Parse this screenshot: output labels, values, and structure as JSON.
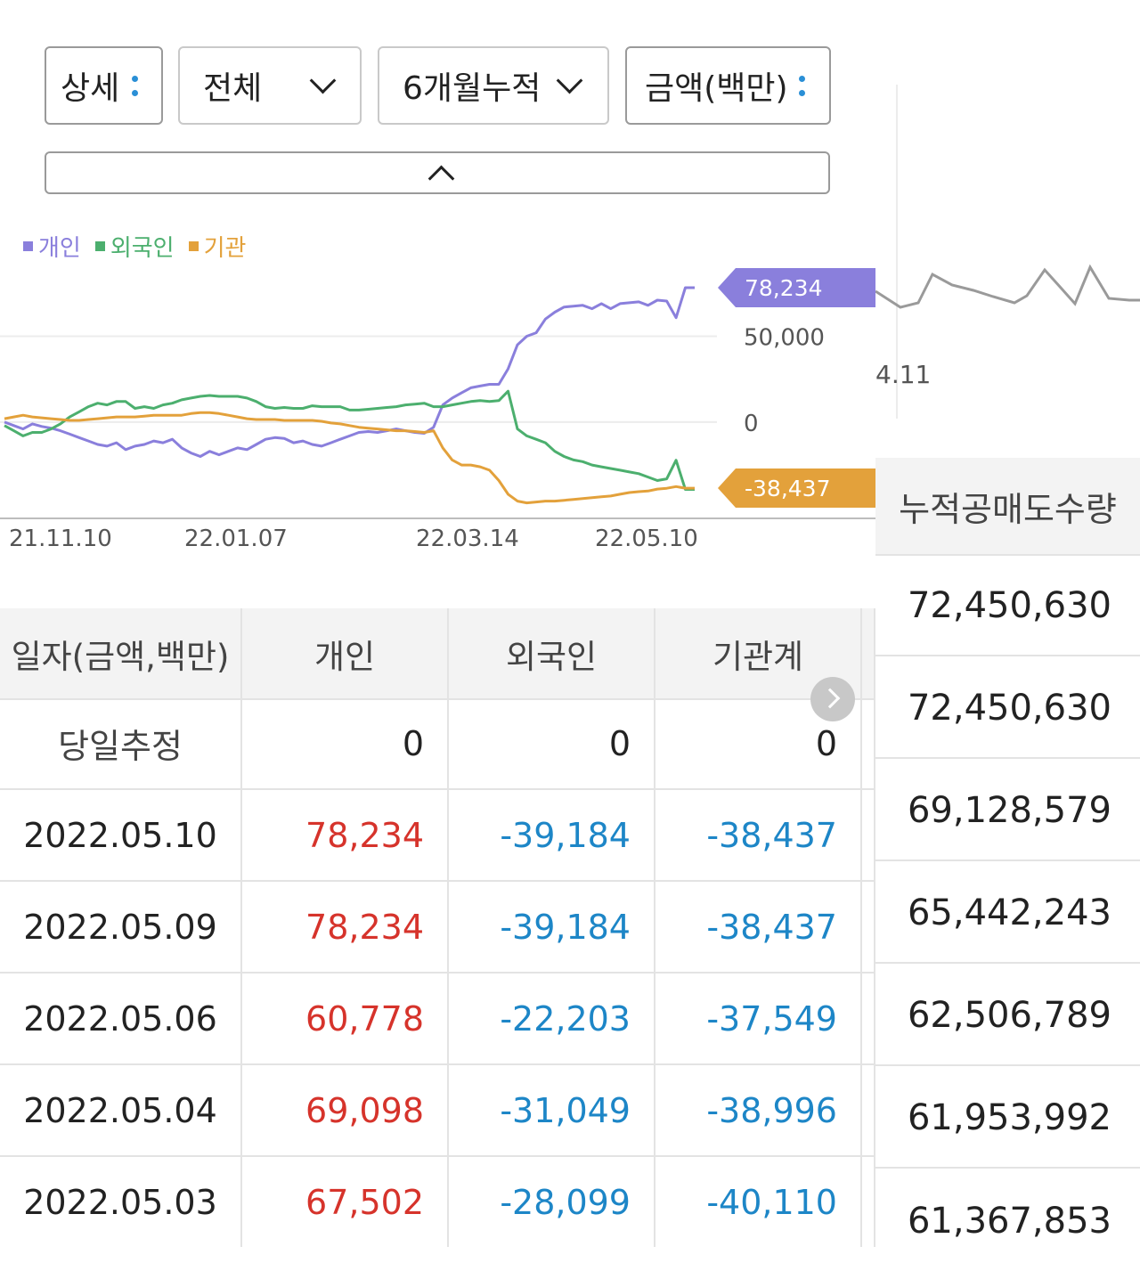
{
  "filters": {
    "detail": "상세",
    "scope": "전체",
    "period": "6개월누적",
    "unit": "금액(백만)"
  },
  "chart_legend": [
    "개인",
    "외국인",
    "기관"
  ],
  "chart_data": {
    "type": "line",
    "x_ticks": [
      "21.11.10",
      "22.01.07",
      "22.03.14",
      "22.05.10"
    ],
    "y_ticks": [
      "50,000",
      "0"
    ],
    "ylim": [
      -55000,
      85000
    ],
    "colors": {
      "개인": "#8a7fdc",
      "외국인": "#4caf6e",
      "기관": "#e3a13b"
    },
    "series": [
      {
        "name": "개인",
        "values": [
          0,
          -2000,
          -4000,
          -1000,
          -2500,
          -3500,
          -5000,
          -7000,
          -9000,
          -11000,
          -13000,
          -14000,
          -12000,
          -16000,
          -14000,
          -13000,
          -11000,
          -12000,
          -10000,
          -15000,
          -18000,
          -20000,
          -17000,
          -19000,
          -17000,
          -15000,
          -16000,
          -13000,
          -10000,
          -9000,
          -9500,
          -12000,
          -11000,
          -13000,
          -14000,
          -12000,
          -10000,
          -8000,
          -6000,
          -5500,
          -6000,
          -5000,
          -4000,
          -5000,
          -6000,
          -6500,
          -3000,
          10000,
          14000,
          17000,
          20000,
          21000,
          22000,
          22000,
          31000,
          45000,
          50000,
          52000,
          60000,
          64000,
          67000,
          67500,
          68000,
          66000,
          69000,
          66000,
          69000,
          69500,
          70000,
          68000,
          71000,
          70500,
          60778,
          78234,
          78234
        ],
        "label": "78,234"
      },
      {
        "name": "외국인",
        "values": [
          -2000,
          -5000,
          -8000,
          -6000,
          -6000,
          -4000,
          -1000,
          3000,
          6000,
          9000,
          11000,
          10000,
          12000,
          12000,
          8000,
          9000,
          8000,
          10000,
          11000,
          13000,
          14000,
          15000,
          15500,
          15000,
          15000,
          15000,
          14000,
          12000,
          9000,
          8000,
          8500,
          8000,
          8000,
          9500,
          9000,
          9000,
          9000,
          7000,
          7000,
          7500,
          8000,
          8500,
          9000,
          10000,
          10500,
          11000,
          9000,
          9000,
          10000,
          11000,
          12000,
          12500,
          12000,
          12500,
          18000,
          -4000,
          -8000,
          -10000,
          -12000,
          -17000,
          -20000,
          -22000,
          -23000,
          -25000,
          -26000,
          -27000,
          -28000,
          -29000,
          -30000,
          -32000,
          -34000,
          -33000,
          -22203,
          -39184,
          -39184
        ],
        "label": "-39,184"
      },
      {
        "name": "기관",
        "values": [
          2000,
          3000,
          4000,
          3000,
          2500,
          2000,
          1500,
          1000,
          1000,
          1500,
          2000,
          2500,
          3000,
          3000,
          3000,
          3500,
          4000,
          4000,
          4000,
          4000,
          5000,
          5500,
          5500,
          5000,
          4000,
          3000,
          2000,
          1500,
          1500,
          1500,
          1000,
          1000,
          1000,
          1000,
          500,
          -500,
          -1000,
          -2000,
          -3000,
          -3500,
          -4000,
          -4500,
          -5000,
          -5000,
          -5500,
          -6000,
          -5000,
          -15000,
          -22000,
          -25000,
          -25000,
          -26000,
          -28000,
          -34000,
          -42000,
          -46000,
          -47000,
          -46500,
          -46000,
          -46000,
          -45500,
          -45000,
          -44500,
          -44000,
          -43500,
          -43000,
          -42000,
          -41000,
          -40500,
          -40110,
          -38996,
          -38500,
          -37549,
          -38437,
          -38437
        ],
        "label": "-38,437"
      }
    ]
  },
  "table": {
    "headers": [
      "일자(금액,백만)",
      "개인",
      "외국인",
      "기관계"
    ],
    "rows": [
      [
        "당일추정",
        "0",
        "0",
        "0"
      ],
      [
        "2022.05.10",
        "78,234",
        "-39,184",
        "-38,437"
      ],
      [
        "2022.05.09",
        "78,234",
        "-39,184",
        "-38,437"
      ],
      [
        "2022.05.06",
        "60,778",
        "-22,203",
        "-37,549"
      ],
      [
        "2022.05.04",
        "69,098",
        "-31,049",
        "-38,996"
      ],
      [
        "2022.05.03",
        "67,502",
        "-28,099",
        "-40,110"
      ]
    ]
  },
  "right_panel": {
    "x_tick": "4.11",
    "header": "누적공매도수량",
    "values": [
      "72,450,630",
      "72,450,630",
      "69,128,579",
      "65,442,243",
      "62,506,789",
      "61,953,992",
      "61,367,853"
    ]
  }
}
